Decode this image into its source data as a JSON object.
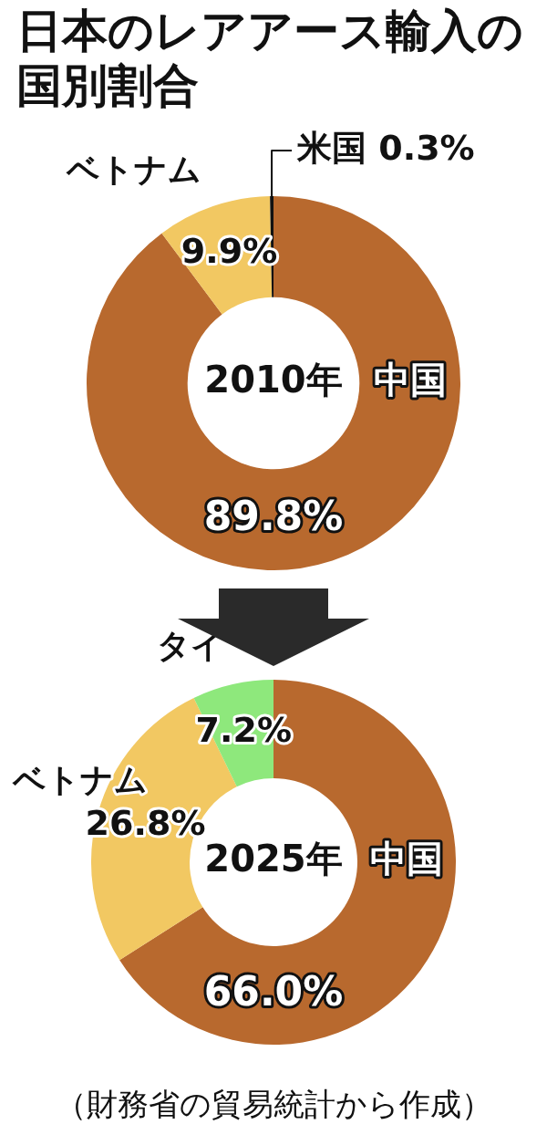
{
  "chart_data": [
    {
      "type": "donut",
      "title": "日本のレアアース輸入の国別割合",
      "categories": [
        "中国",
        "ベトナム",
        "米国"
      ],
      "values": [
        89.8,
        9.9,
        0.3
      ],
      "colors": [
        "#b8692e",
        "#f2c862",
        "#111111"
      ],
      "value_labels": [
        "89.8%",
        "9.9%",
        "0.3%"
      ],
      "annotations": [
        "2010年"
      ]
    },
    {
      "type": "donut",
      "categories": [
        "中国",
        "ベトナム",
        "タイ"
      ],
      "values": [
        66.0,
        26.8,
        7.2
      ],
      "colors": [
        "#b8692e",
        "#f2c862",
        "#8ee87c"
      ],
      "value_labels": [
        "66.0%",
        "26.8%",
        "7.2%"
      ],
      "annotations": [
        "2025年",
        "（財務省の貿易統計から作成）"
      ]
    }
  ]
}
